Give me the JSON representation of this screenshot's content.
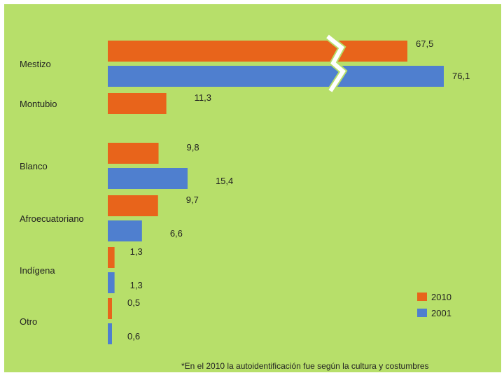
{
  "colors": {
    "background": "#b7df6a",
    "series_2010": "#e8641b",
    "series_2001": "#4f7fcf"
  },
  "footnote": "*En el 2010 la autoidentificación fue según la cultura y costumbres",
  "chart_data": {
    "type": "bar",
    "orientation": "horizontal",
    "title": "",
    "xlabel": "",
    "ylabel": "",
    "categories": [
      "Mestizo",
      "Montubio",
      "Blanco",
      "Afroecuatoriano",
      "Indígena",
      "Otro"
    ],
    "series": [
      {
        "name": "2010",
        "color": "#e8641b",
        "values": [
          67.5,
          11.3,
          9.8,
          9.7,
          1.3,
          0.5
        ],
        "labels": [
          "67,5",
          "11,3",
          "9,8",
          "9,7",
          "1,3",
          "0,5"
        ]
      },
      {
        "name": "2001",
        "color": "#4f7fcf",
        "values": [
          76.1,
          null,
          15.4,
          6.6,
          1.3,
          0.6
        ],
        "labels": [
          "76,1",
          "",
          "15,4",
          "6,6",
          "1,3",
          "0,6"
        ]
      }
    ],
    "axis_break": {
      "category": "Mestizo",
      "note": "broken scale on Mestizo bars"
    },
    "legend_position": "bottom-right",
    "grid": false
  }
}
